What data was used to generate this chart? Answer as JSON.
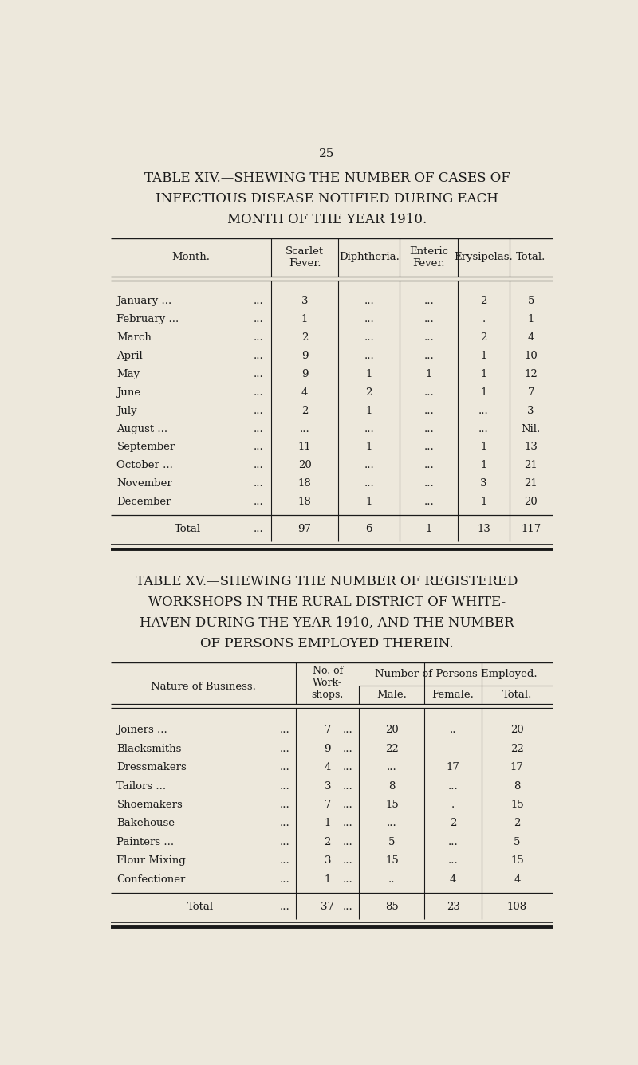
{
  "page_number": "25",
  "bg_color": "#EDE8DC",
  "text_color": "#1a1a1a",
  "table1_title": [
    "TABLE XIV.—SHEWING THE NUMBER OF CASES OF",
    "INFECTIOUS DISEASE NOTIFIED DURING EACH",
    "MONTH OF THE YEAR 1910."
  ],
  "table1_rows": [
    [
      "January ...",
      "...",
      "3",
      "...",
      "...",
      "2",
      "5"
    ],
    [
      "February ...",
      "...",
      "1",
      "...",
      "...",
      ".",
      "1"
    ],
    [
      "March",
      "...",
      "2",
      "...",
      "...",
      "2",
      "4"
    ],
    [
      "April",
      "...",
      "9",
      "...",
      "...",
      "1",
      "10"
    ],
    [
      "May",
      "...",
      "9",
      "1",
      "1",
      "1",
      "12"
    ],
    [
      "June",
      "...",
      "4",
      "2",
      "...",
      "1",
      "7"
    ],
    [
      "July",
      "...",
      "2",
      "1",
      "...",
      "...",
      "3"
    ],
    [
      "August ...",
      "...",
      "...",
      "...",
      "...",
      "...",
      "Nil."
    ],
    [
      "September",
      "...",
      "11",
      "1",
      "...",
      "1",
      "13"
    ],
    [
      "October ...",
      "...",
      "20",
      "...",
      "...",
      "1",
      "21"
    ],
    [
      "November",
      "...",
      "18",
      "...",
      "...",
      "3",
      "21"
    ],
    [
      "December",
      "...",
      "18",
      "1",
      "...",
      "1",
      "20"
    ]
  ],
  "table1_total": [
    "Total",
    "...",
    "97",
    "6",
    "1",
    "13",
    "117"
  ],
  "table2_title": [
    "TABLE XV.—SHEWING THE NUMBER OF REGISTERED",
    "WORKSHOPS IN THE RURAL DISTRICT OF WHITE-",
    "HAVEN DURING THE YEAR 1910, AND THE NUMBER",
    "OF PERSONS EMPLOYED THEREIN."
  ],
  "table2_rows": [
    [
      "Joiners ...",
      "...",
      "...",
      "7",
      "20",
      "..",
      "20"
    ],
    [
      "Blacksmiths",
      "...",
      "...",
      "9",
      "22",
      "",
      "22"
    ],
    [
      "Dressmakers",
      "...",
      "...",
      "4",
      "...",
      "17",
      "17"
    ],
    [
      "Tailors ...",
      "...",
      "...",
      "3",
      "8",
      "...",
      "8"
    ],
    [
      "Shoemakers",
      "...",
      "...",
      "7",
      "15",
      ".",
      "15"
    ],
    [
      "Bakehouse",
      "...",
      "...",
      "1",
      "...",
      "2",
      "2"
    ],
    [
      "Painters ...",
      "...",
      "...",
      "2",
      "5",
      "...",
      "5"
    ],
    [
      "Flour Mixing",
      "...",
      "...",
      "3",
      "15",
      "...",
      "15"
    ],
    [
      "Confectioner",
      "...",
      "...",
      "1",
      "..",
      "4",
      "4"
    ]
  ],
  "table2_total": [
    "Total",
    "...",
    "...",
    "37",
    "85",
    "23",
    "108"
  ]
}
